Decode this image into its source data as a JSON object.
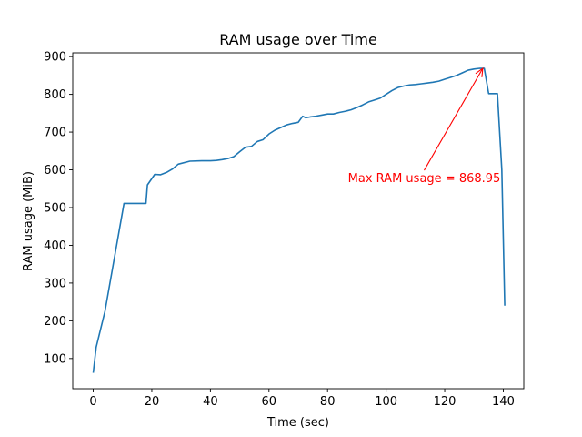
{
  "chart_data": {
    "type": "line",
    "title": "RAM usage over Time",
    "xlabel": "Time (sec)",
    "ylabel": "RAM usage (MiB)",
    "xlim": [
      -7,
      147
    ],
    "ylim": [
      20,
      910
    ],
    "xticks": [
      0,
      20,
      40,
      60,
      80,
      100,
      120,
      140
    ],
    "yticks": [
      100,
      200,
      300,
      400,
      500,
      600,
      700,
      800,
      900
    ],
    "grid": false,
    "line_color": "#1f77b4",
    "series": [
      {
        "x": [
          0,
          1,
          4,
          10.5,
          18,
          18.5,
          21,
          23,
          25,
          27,
          29,
          33,
          37,
          40,
          42,
          44,
          46,
          48,
          50,
          52,
          54,
          56,
          58,
          60,
          62,
          64,
          66,
          68,
          70,
          71.5,
          72.5,
          74,
          76,
          78,
          80,
          82,
          84,
          86,
          88,
          90,
          92,
          94,
          96,
          98,
          100,
          102,
          104,
          106,
          108,
          110,
          112,
          114,
          116,
          118,
          120,
          122,
          124,
          126,
          128,
          130,
          132,
          133.5,
          135,
          138,
          139.5,
          140.5
        ],
        "y": [
          62,
          130,
          225,
          511,
          511,
          560,
          588,
          587,
          593,
          602,
          615,
          623,
          624,
          624,
          625,
          627,
          630,
          635,
          648,
          660,
          662,
          675,
          680,
          695,
          705,
          712,
          719,
          723,
          726,
          742,
          738,
          740,
          742,
          745,
          748,
          748,
          752,
          755,
          759,
          765,
          772,
          780,
          785,
          790,
          800,
          810,
          818,
          822,
          825,
          826,
          828,
          830,
          832,
          835,
          840,
          845,
          850,
          857,
          864,
          867,
          869,
          868.95,
          802,
          802,
          600,
          240
        ]
      }
    ],
    "annotation": {
      "text": "Max RAM usage = 868.95",
      "color": "#ff0000",
      "point": [
        133,
        868.95
      ],
      "text_anchor": [
        113,
        577
      ]
    }
  }
}
